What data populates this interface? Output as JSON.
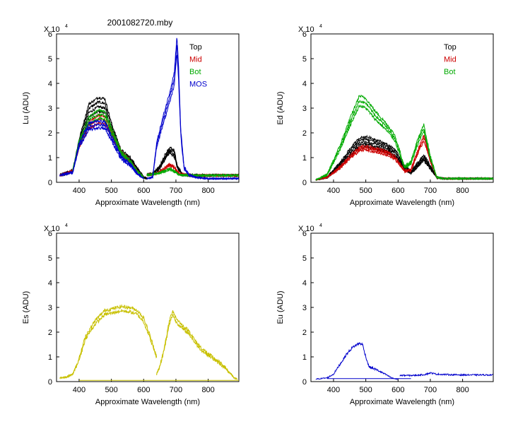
{
  "figure_title": "2001082720.mby",
  "chart_data": [
    {
      "type": "line",
      "id": "lu",
      "ylabel": "Lu (ADU)",
      "xlabel": "Approximate Wavelength (nm)",
      "multiplier": "X 10",
      "multiplier_exp": "4",
      "xlim": [
        330,
        895
      ],
      "ylim": [
        0,
        6
      ],
      "xticks": [
        400,
        500,
        600,
        700,
        800
      ],
      "yticks": [
        0,
        1,
        2,
        3,
        4,
        5,
        6
      ],
      "legend_position": "top-right",
      "legend": [
        {
          "label": "Top",
          "color": "#000000"
        },
        {
          "label": "Mid",
          "color": "#cc0000"
        },
        {
          "label": "Bot",
          "color": "#00aa00"
        },
        {
          "label": "MOS",
          "color": "#0000cc"
        }
      ],
      "series": [
        {
          "name": "Top",
          "color": "#000000",
          "copies": 4,
          "noise": 0.06,
          "segments": [
            {
              "x": [
                340,
                380,
                400,
                430,
                460,
                480,
                500,
                530,
                560,
                580,
                600,
                610
              ],
              "y": [
                0.28,
                0.45,
                1.6,
                2.9,
                3.15,
                3.1,
                2.2,
                1.2,
                0.9,
                0.55,
                0.2,
                0.15
              ]
            },
            {
              "x": [
                610,
                630,
                650,
                665,
                680,
                695,
                705,
                720,
                750,
                800,
                895
              ],
              "y": [
                0.3,
                0.35,
                0.6,
                1.0,
                1.3,
                1.15,
                0.6,
                0.3,
                0.28,
                0.28,
                0.28
              ]
            }
          ]
        },
        {
          "name": "Mid",
          "color": "#cc0000",
          "copies": 3,
          "noise": 0.05,
          "segments": [
            {
              "x": [
                340,
                380,
                400,
                430,
                460,
                480,
                500,
                530,
                560,
                580,
                600
              ],
              "y": [
                0.28,
                0.45,
                1.5,
                2.3,
                2.55,
                2.5,
                2.0,
                1.2,
                0.8,
                0.45,
                0.2
              ]
            },
            {
              "x": [
                610,
                640,
                665,
                680,
                695,
                710,
                750,
                895
              ],
              "y": [
                0.3,
                0.35,
                0.55,
                0.7,
                0.6,
                0.35,
                0.28,
                0.28
              ]
            }
          ]
        },
        {
          "name": "Bot",
          "color": "#00aa00",
          "copies": 3,
          "noise": 0.05,
          "segments": [
            {
              "x": [
                380,
                400,
                430,
                460,
                480,
                500,
                530,
                560,
                580,
                600
              ],
              "y": [
                0.45,
                1.6,
                2.5,
                2.75,
                2.7,
                2.1,
                1.2,
                0.8,
                0.45,
                0.2
              ]
            },
            {
              "x": [
                610,
                640,
                665,
                680,
                695,
                710,
                750,
                895
              ],
              "y": [
                0.3,
                0.35,
                0.45,
                0.55,
                0.45,
                0.3,
                0.28,
                0.28
              ]
            }
          ]
        },
        {
          "name": "MOS",
          "color": "#0000cc",
          "copies": 3,
          "noise": 0.06,
          "segments": [
            {
              "x": [
                340,
                380,
                400,
                430,
                460,
                480,
                500,
                530,
                560,
                580,
                600
              ],
              "y": [
                0.28,
                0.4,
                1.5,
                2.25,
                2.35,
                2.3,
                1.8,
                1.0,
                0.7,
                0.35,
                0.15
              ]
            },
            {
              "x": [
                610,
                628,
                640,
                660,
                680,
                695,
                703,
                708,
                715,
                725,
                740,
                760,
                800,
                895
              ],
              "y": [
                0.15,
                0.2,
                1.5,
                2.5,
                3.4,
                4.2,
                5.6,
                4.5,
                2.0,
                0.6,
                0.3,
                0.2,
                0.15,
                0.15
              ]
            }
          ]
        }
      ]
    },
    {
      "type": "line",
      "id": "ed",
      "ylabel": "Ed (ADU)",
      "xlabel": "Approximate Wavelength (nm)",
      "multiplier": "X 10",
      "multiplier_exp": "4",
      "xlim": [
        330,
        895
      ],
      "ylim": [
        0,
        6
      ],
      "xticks": [
        400,
        500,
        600,
        700,
        800
      ],
      "yticks": [
        0,
        1,
        2,
        3,
        4,
        5,
        6
      ],
      "legend_position": "top-right",
      "legend": [
        {
          "label": "Top",
          "color": "#000000"
        },
        {
          "label": "Mid",
          "color": "#cc0000"
        },
        {
          "label": "Bot",
          "color": "#00aa00"
        }
      ],
      "series": [
        {
          "name": "Top",
          "color": "#000000",
          "copies": 5,
          "noise": 0.05,
          "segments": [
            {
              "x": [
                345,
                380,
                420,
                450,
                480,
                500,
                530,
                560,
                590,
                620,
                640,
                660,
                680,
                700,
                720,
                740,
                895
              ],
              "y": [
                0.1,
                0.2,
                0.7,
                1.2,
                1.6,
                1.65,
                1.55,
                1.4,
                1.2,
                0.6,
                0.4,
                0.7,
                1.0,
                0.6,
                0.2,
                0.15,
                0.15
              ]
            }
          ]
        },
        {
          "name": "Mid",
          "color": "#cc0000",
          "copies": 3,
          "noise": 0.05,
          "segments": [
            {
              "x": [
                345,
                380,
                420,
                450,
                480,
                500,
                530,
                560,
                590,
                620,
                640,
                660,
                680,
                700,
                720,
                740,
                895
              ],
              "y": [
                0.1,
                0.2,
                0.6,
                1.0,
                1.35,
                1.4,
                1.3,
                1.2,
                1.0,
                0.45,
                0.5,
                1.2,
                1.8,
                0.9,
                0.2,
                0.15,
                0.15
              ]
            }
          ]
        },
        {
          "name": "Bot",
          "color": "#00aa00",
          "copies": 3,
          "noise": 0.06,
          "segments": [
            {
              "x": [
                345,
                380,
                420,
                450,
                480,
                500,
                530,
                560,
                590,
                620,
                640,
                660,
                680,
                700,
                720,
                740,
                895
              ],
              "y": [
                0.1,
                0.3,
                1.4,
                2.4,
                3.3,
                3.2,
                2.7,
                2.3,
                1.8,
                0.6,
                0.8,
                1.6,
                2.2,
                1.0,
                0.2,
                0.15,
                0.15
              ]
            }
          ]
        }
      ]
    },
    {
      "type": "line",
      "id": "es",
      "ylabel": "Es (ADU)",
      "xlabel": "Approximate Wavelength (nm)",
      "multiplier": "X 10",
      "multiplier_exp": "4",
      "xlim": [
        330,
        895
      ],
      "ylim": [
        0,
        6
      ],
      "xticks": [
        400,
        500,
        600,
        700,
        800
      ],
      "yticks": [
        0,
        1,
        2,
        3,
        4,
        5,
        6
      ],
      "legend": [],
      "series": [
        {
          "name": "",
          "color": "#c8c000",
          "copies": 2,
          "noise": 0.07,
          "segments": [
            {
              "x": [
                340,
                360,
                380,
                400,
                420,
                450,
                480,
                500,
                530,
                560,
                580,
                600,
                620,
                640
              ],
              "y": [
                0.15,
                0.18,
                0.3,
                0.9,
                1.8,
                2.4,
                2.8,
                2.85,
                2.95,
                2.9,
                2.8,
                2.5,
                1.8,
                1.0
              ]
            },
            {
              "x": [
                640,
                650,
                665,
                680,
                690,
                700,
                720,
                740,
                760,
                780,
                800,
                820,
                850,
                870,
                880,
                890
              ],
              "y": [
                0.3,
                0.6,
                1.4,
                2.4,
                2.8,
                2.5,
                2.2,
                2.0,
                1.6,
                1.3,
                1.1,
                0.9,
                0.6,
                0.3,
                0.15,
                0.1
              ]
            }
          ]
        },
        {
          "name": "",
          "color": "#c8c000",
          "copies": 1,
          "noise": 0.0,
          "segments": [
            {
              "x": [
                400,
                895
              ],
              "y": [
                0.05,
                0.05
              ]
            }
          ]
        }
      ]
    },
    {
      "type": "line",
      "id": "eu",
      "ylabel": "Eu (ADU)",
      "xlabel": "Approximate Wavelength (nm)",
      "multiplier": "X 10",
      "multiplier_exp": "4",
      "xlim": [
        330,
        895
      ],
      "ylim": [
        0,
        6
      ],
      "xticks": [
        400,
        500,
        600,
        700,
        800
      ],
      "yticks": [
        0,
        1,
        2,
        3,
        4,
        5,
        6
      ],
      "legend": [],
      "series": [
        {
          "name": "",
          "color": "#0000cc",
          "copies": 1,
          "noise": 0.05,
          "segments": [
            {
              "x": [
                345,
                380,
                400,
                420,
                440,
                460,
                480,
                490,
                500,
                510,
                530,
                560,
                580,
                600
              ],
              "y": [
                0.1,
                0.15,
                0.3,
                0.7,
                1.1,
                1.4,
                1.55,
                1.5,
                1.0,
                0.6,
                0.5,
                0.3,
                0.15,
                0.08
              ]
            },
            {
              "x": [
                605,
                650,
                680,
                700,
                720,
                760,
                800,
                895
              ],
              "y": [
                0.25,
                0.25,
                0.28,
                0.35,
                0.3,
                0.28,
                0.27,
                0.27
              ]
            }
          ]
        },
        {
          "name": "",
          "color": "#0000cc",
          "copies": 1,
          "noise": 0.0,
          "segments": [
            {
              "x": [
                380,
                640
              ],
              "y": [
                0.12,
                0.12
              ]
            }
          ]
        }
      ]
    }
  ]
}
